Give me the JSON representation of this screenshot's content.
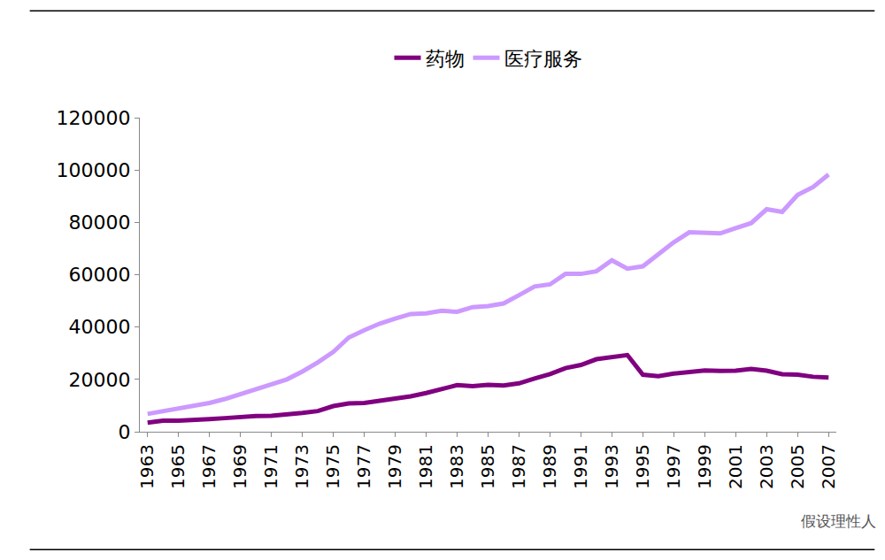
{
  "chart_data": {
    "type": "line",
    "x": [
      1963,
      1964,
      1965,
      1966,
      1967,
      1968,
      1969,
      1970,
      1971,
      1972,
      1973,
      1974,
      1975,
      1976,
      1977,
      1978,
      1979,
      1980,
      1981,
      1982,
      1983,
      1984,
      1985,
      1986,
      1987,
      1988,
      1989,
      1990,
      1991,
      1992,
      1993,
      1994,
      1995,
      1996,
      1997,
      1998,
      1999,
      2000,
      2001,
      2002,
      2003,
      2004,
      2005,
      2006,
      2007
    ],
    "series": [
      {
        "name": "药物",
        "color": "#800080",
        "values": [
          3500,
          4200,
          4200,
          4300,
          4800,
          5200,
          5700,
          6000,
          6100,
          6500,
          7200,
          7900,
          9800,
          10800,
          11000,
          11800,
          12600,
          13500,
          14800,
          16300,
          17800,
          17400,
          17900,
          17700,
          18500,
          20300,
          22000,
          24300,
          25500,
          27700,
          28300,
          29300,
          21800,
          21200,
          22200,
          22700,
          23400,
          23200,
          23300,
          24000,
          23300,
          22000,
          21800,
          21000,
          20700
        ]
      },
      {
        "name": "医疗服务",
        "color": "#cc99ff",
        "values": [
          6800,
          7800,
          9000,
          9800,
          11000,
          12500,
          14300,
          16000,
          17800,
          20000,
          23000,
          26500,
          30500,
          36000,
          38800,
          41300,
          43200,
          45000,
          45200,
          46200,
          45800,
          47600,
          48000,
          49000,
          52200,
          55500,
          56300,
          60300,
          60300,
          61300,
          65500,
          62300,
          63200,
          68000,
          72400,
          76200,
          76000,
          75800,
          77800,
          79700,
          85000,
          84000,
          90500,
          93500,
          98300
        ]
      }
    ],
    "xlim": [
      1962.5,
      2007.5
    ],
    "xticks": [
      1963,
      1965,
      1967,
      1969,
      1971,
      1973,
      1975,
      1977,
      1979,
      1981,
      1983,
      1985,
      1987,
      1989,
      1991,
      1993,
      1995,
      1997,
      1999,
      2001,
      2003,
      2005,
      2007
    ],
    "ylim": [
      0,
      120000
    ],
    "yticks": [
      0,
      20000,
      40000,
      60000,
      80000,
      100000,
      120000
    ],
    "grid": false,
    "legend": "top",
    "annotations": [
      "假设理性人"
    ]
  }
}
